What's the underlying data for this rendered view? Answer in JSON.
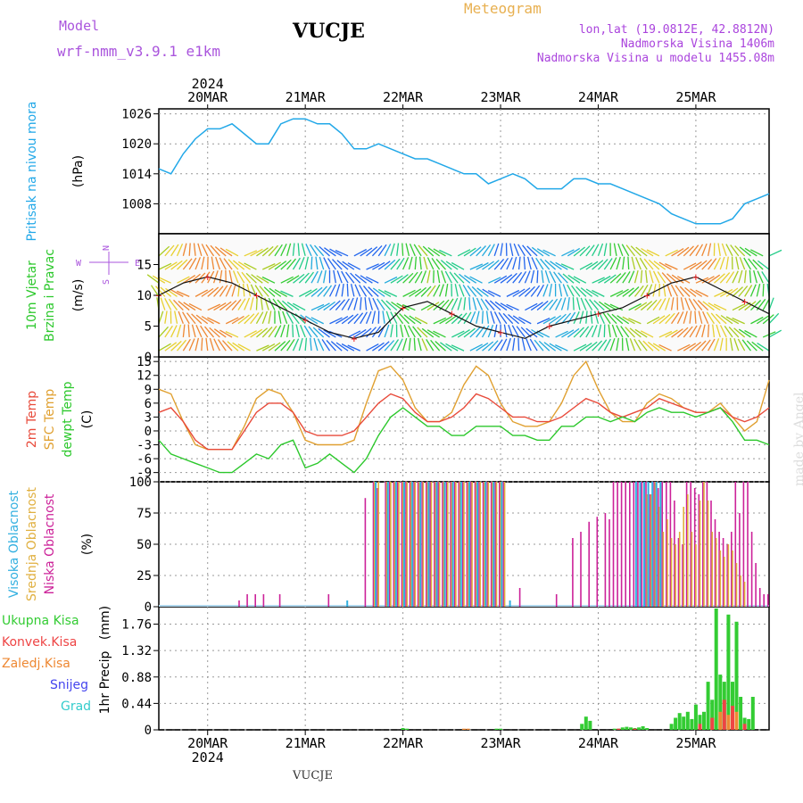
{
  "header": {
    "model_label": "Model",
    "model_name": "wrf-nmm_v3.9.1  e1km",
    "station": "VUCJE",
    "product": "Meteogram",
    "lonlat": "lon,lat (19.0812E, 42.8812N)",
    "elevation": "Nadmorska Visina 1406m",
    "model_elevation": "Nadmorska Visina u modelu 1455.08m",
    "watermark": "made by Angel",
    "footer_station": "VUCJE"
  },
  "colors": {
    "pressure": "#22a8e8",
    "temp2m": "#e84a3a",
    "sfc_temp": "#e0a030",
    "dewpoint": "#2cc82c",
    "total_precip": "#33cc33",
    "conv_precip": "#ee4444",
    "freezing_rain": "#ee8833",
    "snow": "#4444ee",
    "hail": "#33cccc",
    "high_cloud": "#33b0e0",
    "mid_cloud": "#e0b040",
    "low_cloud": "#cc2299",
    "model_label": "#aa55dd",
    "product_label": "#e8b050",
    "info_label": "#aa44dd"
  },
  "chart_data": [
    {
      "type": "line",
      "ylabel_lines": [
        "Pritisak na nivou mora",
        "(hPa)"
      ],
      "ylim": [
        1002,
        1027
      ],
      "yticks": [
        "1008",
        "1014",
        "1020",
        "1026"
      ],
      "top_date_labels": [
        "20MAR",
        "21MAR",
        "22MAR",
        "23MAR",
        "24MAR",
        "25MAR"
      ],
      "year_label": "2024",
      "x_unit": "hours since 19MAR 12Z",
      "series": [
        {
          "name": "pressure",
          "x": [
            0,
            3,
            6,
            9,
            12,
            15,
            18,
            21,
            24,
            27,
            30,
            33,
            36,
            39,
            42,
            45,
            48,
            51,
            54,
            57,
            60,
            63,
            66,
            69,
            72,
            75,
            78,
            81,
            84,
            87,
            90,
            93,
            96,
            99,
            102,
            105,
            108,
            111,
            114,
            117,
            120,
            123,
            126,
            129,
            132,
            135,
            138,
            141,
            144,
            147,
            150
          ],
          "values": [
            1015,
            1014,
            1018,
            1021,
            1023,
            1023,
            1024,
            1022,
            1020,
            1020,
            1024,
            1025,
            1025,
            1024,
            1024,
            1022,
            1019,
            1019,
            1020,
            1019,
            1018,
            1017,
            1017,
            1016,
            1015,
            1014,
            1014,
            1012,
            1013,
            1014,
            1013,
            1011,
            1011,
            1011,
            1013,
            1013,
            1012,
            1012,
            1011,
            1010,
            1009,
            1008,
            1006,
            1005,
            1004,
            1004,
            1004,
            1005,
            1008,
            1009,
            1010
          ]
        }
      ]
    },
    {
      "type": "line",
      "ylabel_lines": [
        "10m Vjetar",
        "Brzina i Pravac",
        "(m/s)"
      ],
      "ylim": [
        0,
        20
      ],
      "yticks": [
        "0",
        "5",
        "10",
        "15"
      ],
      "compass": {
        "n": "N",
        "s": "S",
        "w": "W",
        "e": "E"
      },
      "series": [
        {
          "name": "wind_speed",
          "x": [
            0,
            6,
            12,
            18,
            24,
            30,
            36,
            42,
            48,
            54,
            60,
            66,
            72,
            78,
            84,
            90,
            96,
            102,
            108,
            114,
            120,
            126,
            132,
            138,
            144,
            150
          ],
          "values": [
            10,
            12,
            13,
            12,
            10,
            8,
            6,
            4,
            3,
            4,
            8,
            9,
            7,
            5,
            4,
            3,
            5,
            6,
            7,
            8,
            10,
            12,
            13,
            11,
            9,
            7
          ]
        }
      ]
    },
    {
      "type": "line",
      "ylabel_lines": [
        "2m Temp",
        "SFC Temp",
        "dewpt Temp",
        "(C)"
      ],
      "ylim": [
        -11,
        16
      ],
      "yticks": [
        "-9",
        "-6",
        "-3",
        "0",
        "3",
        "6",
        "9",
        "12",
        "15"
      ],
      "series": [
        {
          "name": "2m Temp",
          "x": [
            0,
            3,
            6,
            9,
            12,
            15,
            18,
            21,
            24,
            27,
            30,
            33,
            36,
            39,
            42,
            45,
            48,
            51,
            54,
            57,
            60,
            63,
            66,
            69,
            72,
            75,
            78,
            81,
            84,
            87,
            90,
            93,
            96,
            99,
            102,
            105,
            108,
            111,
            114,
            117,
            120,
            123,
            126,
            129,
            132,
            135,
            138,
            141,
            144,
            147,
            150
          ],
          "values": [
            4,
            5,
            2,
            -2,
            -4,
            -4,
            -4,
            0,
            4,
            6,
            6,
            4,
            0,
            -1,
            -1,
            -1,
            0,
            3,
            6,
            8,
            7,
            4,
            2,
            2,
            3,
            5,
            8,
            7,
            5,
            3,
            3,
            2,
            2,
            3,
            5,
            7,
            6,
            4,
            3,
            4,
            5,
            7,
            6,
            5,
            4,
            4,
            5,
            3,
            2,
            3,
            5
          ]
        },
        {
          "name": "SFC Temp",
          "x": [
            0,
            3,
            6,
            9,
            12,
            15,
            18,
            21,
            24,
            27,
            30,
            33,
            36,
            39,
            42,
            45,
            48,
            51,
            54,
            57,
            60,
            63,
            66,
            69,
            72,
            75,
            78,
            81,
            84,
            87,
            90,
            93,
            96,
            99,
            102,
            105,
            108,
            111,
            114,
            117,
            120,
            123,
            126,
            129,
            132,
            135,
            138,
            141,
            144,
            147,
            150
          ],
          "values": [
            9,
            8,
            2,
            -3,
            -4,
            -4,
            -4,
            1,
            7,
            9,
            8,
            4,
            -2,
            -3,
            -3,
            -3,
            -2,
            6,
            13,
            14,
            11,
            5,
            2,
            2,
            4,
            10,
            14,
            12,
            6,
            2,
            1,
            1,
            2,
            6,
            12,
            15,
            9,
            4,
            2,
            2,
            6,
            8,
            7,
            5,
            4,
            4,
            6,
            3,
            0,
            2,
            11
          ]
        },
        {
          "name": "dewpt Temp",
          "x": [
            0,
            3,
            6,
            9,
            12,
            15,
            18,
            21,
            24,
            27,
            30,
            33,
            36,
            39,
            42,
            45,
            48,
            51,
            54,
            57,
            60,
            63,
            66,
            69,
            72,
            75,
            78,
            81,
            84,
            87,
            90,
            93,
            96,
            99,
            102,
            105,
            108,
            111,
            114,
            117,
            120,
            123,
            126,
            129,
            132,
            135,
            138,
            141,
            144,
            147,
            150
          ],
          "values": [
            -2,
            -5,
            -6,
            -7,
            -8,
            -9,
            -9,
            -7,
            -5,
            -6,
            -3,
            -2,
            -8,
            -7,
            -5,
            -7,
            -9,
            -6,
            -1,
            3,
            5,
            3,
            1,
            1,
            -1,
            -1,
            1,
            1,
            1,
            -1,
            -1,
            -2,
            -2,
            1,
            1,
            3,
            3,
            2,
            3,
            2,
            4,
            5,
            4,
            4,
            3,
            4,
            5,
            2,
            -2,
            -2,
            -3
          ]
        }
      ]
    },
    {
      "type": "bar",
      "ylabel_lines": [
        "Visoka Oblacnost",
        "Srednja Oblacnost",
        "Niska Oblacnost",
        "(%)"
      ],
      "ylim": [
        0,
        100
      ],
      "yticks": [
        "0",
        "25",
        "50",
        "75",
        "100"
      ],
      "series": [
        {
          "name": "Niska Oblacnost",
          "x": [
            20,
            22,
            24,
            26,
            30,
            42,
            51,
            53,
            54,
            56,
            57,
            58,
            59,
            60,
            61,
            62,
            63,
            64,
            65,
            66,
            67,
            68,
            69,
            70,
            71,
            72,
            73,
            74,
            75,
            76,
            77,
            78,
            79,
            80,
            81,
            82,
            83,
            84,
            85,
            89,
            98,
            102,
            104,
            106,
            108,
            110,
            111,
            112,
            113,
            114,
            115,
            116,
            117,
            118,
            119,
            120,
            121,
            122,
            123,
            124,
            125,
            126,
            127,
            128,
            129,
            130,
            131,
            132,
            133,
            134,
            135,
            136,
            137,
            138,
            139,
            140,
            141,
            142,
            143,
            144,
            145,
            146,
            147,
            148,
            149,
            150
          ],
          "values": [
            5,
            10,
            10,
            10,
            10,
            10,
            87,
            100,
            95,
            100,
            100,
            100,
            100,
            100,
            100,
            100,
            100,
            100,
            100,
            100,
            100,
            100,
            100,
            100,
            100,
            100,
            100,
            100,
            100,
            100,
            100,
            100,
            100,
            100,
            100,
            100,
            100,
            100,
            100,
            15,
            10,
            55,
            60,
            68,
            72,
            75,
            70,
            100,
            100,
            100,
            100,
            100,
            100,
            100,
            100,
            100,
            90,
            100,
            95,
            100,
            100,
            100,
            85,
            55,
            50,
            100,
            100,
            95,
            90,
            100,
            100,
            85,
            70,
            60,
            55,
            50,
            60,
            100,
            75,
            100,
            100,
            60,
            35,
            15,
            10,
            10
          ]
        },
        {
          "name": "Srednja Oblacnost",
          "x": [
            53,
            54,
            56,
            57,
            58,
            59,
            60,
            61,
            62,
            63,
            64,
            65,
            66,
            67,
            68,
            69,
            70,
            71,
            72,
            73,
            74,
            75,
            76,
            77,
            78,
            79,
            80,
            81,
            82,
            83,
            84,
            85,
            120,
            121,
            122,
            123,
            124,
            125,
            126,
            127,
            128,
            129,
            130,
            131,
            132,
            133,
            134,
            135,
            136,
            137,
            138,
            139,
            140,
            141,
            142,
            143,
            144
          ],
          "values": [
            100,
            100,
            100,
            100,
            100,
            100,
            100,
            100,
            100,
            100,
            100,
            100,
            100,
            100,
            100,
            100,
            100,
            100,
            100,
            100,
            100,
            100,
            100,
            100,
            100,
            100,
            100,
            100,
            100,
            100,
            100,
            100,
            90,
            90,
            100,
            80,
            60,
            70,
            55,
            50,
            60,
            80,
            90,
            60,
            50,
            85,
            100,
            85,
            60,
            55,
            45,
            40,
            50,
            45,
            35,
            25,
            20
          ]
        },
        {
          "name": "Visoka Oblacnost",
          "x": [
            46,
            53,
            56,
            58,
            60,
            62,
            64,
            66,
            68,
            70,
            72,
            74,
            76,
            78,
            80,
            82,
            84,
            86,
            117,
            118,
            119,
            120,
            121,
            122,
            123
          ],
          "values": [
            5,
            100,
            100,
            100,
            100,
            100,
            100,
            100,
            100,
            100,
            100,
            100,
            100,
            100,
            100,
            100,
            100,
            5,
            100,
            100,
            100,
            100,
            100,
            100,
            100
          ]
        }
      ]
    },
    {
      "type": "bar",
      "ylabel_lines": [
        "1hr Precip",
        "(mm)"
      ],
      "ylim": [
        0,
        2.05
      ],
      "yticks": [
        "0",
        "0.44",
        "0.88",
        "1.32",
        "1.76"
      ],
      "legend": [
        {
          "name": "Ukupna Kisa",
          "color_key": "total_precip"
        },
        {
          "name": "Konvek.Kisa",
          "color_key": "conv_precip"
        },
        {
          "name": "Zaledj.Kisa",
          "color_key": "freezing_rain"
        },
        {
          "name": "Snijeg",
          "color_key": "snow"
        },
        {
          "name": "Grad",
          "color_key": "hail"
        }
      ],
      "bottom_date_labels": [
        "20MAR",
        "21MAR",
        "22MAR",
        "23MAR",
        "24MAR",
        "25MAR"
      ],
      "year_label": "2024",
      "series": [
        {
          "name": "Ukupna Kisa",
          "x": [
            60,
            61,
            83,
            84,
            104,
            105,
            106,
            112,
            113,
            114,
            115,
            116,
            117,
            118,
            119,
            120,
            126,
            127,
            128,
            129,
            130,
            131,
            132,
            133,
            134,
            135,
            136,
            137,
            138,
            139,
            140,
            141,
            142,
            143,
            144,
            145,
            146
          ],
          "values": [
            0.03,
            0.02,
            0.02,
            0.02,
            0.1,
            0.22,
            0.15,
            0.02,
            0.02,
            0.04,
            0.05,
            0.04,
            0.03,
            0.04,
            0.06,
            0.03,
            0.1,
            0.2,
            0.28,
            0.22,
            0.3,
            0.18,
            0.42,
            0.25,
            0.3,
            0.8,
            0.5,
            2.02,
            0.92,
            0.8,
            1.92,
            0.8,
            1.8,
            0.55,
            0.2,
            0.18,
            0.55
          ]
        },
        {
          "name": "Konvek.Kisa",
          "x": [
            113,
            117,
            133,
            136,
            139,
            141,
            144
          ],
          "values": [
            0.02,
            0.02,
            0.1,
            0.2,
            0.5,
            0.4,
            0.1
          ]
        },
        {
          "name": "Zaledj.Kisa",
          "x": [
            75,
            76,
            138,
            140,
            142
          ],
          "values": [
            0.02,
            0.02,
            0.3,
            0.25,
            0.3
          ]
        }
      ]
    }
  ]
}
